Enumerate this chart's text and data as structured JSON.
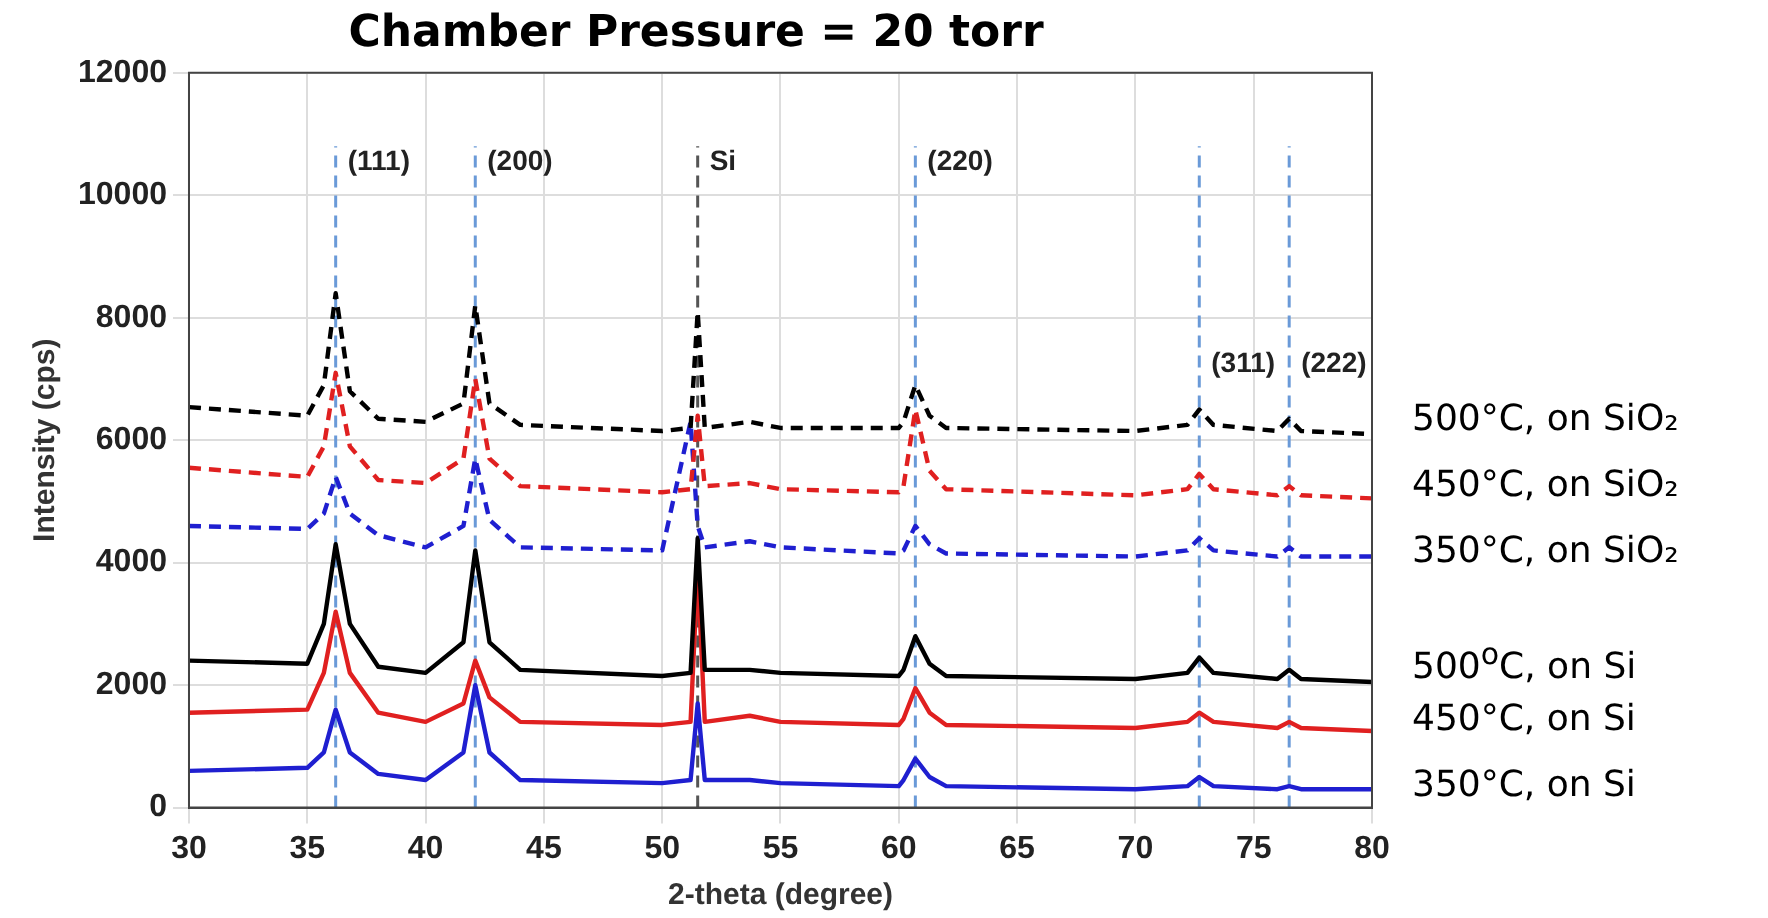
{
  "chart_data": {
    "type": "line",
    "title": "Chamber Pressure = 20 torr",
    "xlabel": "2-theta (degree)",
    "ylabel": "Intensity (cps)",
    "xlim": [
      30,
      80
    ],
    "xticks": [
      30,
      35,
      40,
      45,
      50,
      55,
      60,
      65,
      70,
      75,
      80
    ],
    "ylim": [
      0,
      12000
    ],
    "yticks": [
      0,
      2000,
      4000,
      6000,
      8000,
      10000,
      12000
    ],
    "grid": true,
    "legend": false,
    "marker": "none",
    "x": [
      30,
      35,
      35.7,
      36.2,
      36.8,
      38,
      40,
      41.6,
      42.1,
      42.7,
      44,
      50,
      51.2,
      51.5,
      51.8,
      53.7,
      55,
      60,
      60.2,
      60.7,
      61.3,
      62,
      70,
      72.2,
      72.7,
      73.3,
      76,
      76.5,
      77,
      80
    ],
    "series": [
      {
        "name": "500°C, on SiO₂",
        "color": "#000000",
        "line_style": "dashed",
        "values": [
          6540,
          6400,
          6900,
          8400,
          6800,
          6350,
          6300,
          6600,
          8200,
          6600,
          6250,
          6150,
          6200,
          8100,
          6200,
          6300,
          6200,
          6200,
          6300,
          6900,
          6400,
          6200,
          6150,
          6250,
          6500,
          6250,
          6150,
          6350,
          6150,
          6100
        ]
      },
      {
        "name": "450°C, on SiO₂",
        "color": "#e02020",
        "line_style": "dashed",
        "values": [
          5550,
          5400,
          5900,
          7100,
          5900,
          5350,
          5300,
          5700,
          7000,
          5700,
          5250,
          5150,
          5200,
          6400,
          5250,
          5300,
          5200,
          5150,
          5250,
          6500,
          5500,
          5200,
          5100,
          5200,
          5450,
          5200,
          5100,
          5250,
          5100,
          5050
        ]
      },
      {
        "name": "350°C, on SiO₂",
        "color": "#1f1fd0",
        "line_style": "dashed",
        "values": [
          4600,
          4550,
          4800,
          5400,
          4800,
          4450,
          4250,
          4600,
          5700,
          4700,
          4250,
          4200,
          6300,
          4600,
          4250,
          4350,
          4250,
          4150,
          4200,
          4600,
          4300,
          4150,
          4100,
          4200,
          4400,
          4200,
          4100,
          4250,
          4100,
          4100
        ]
      },
      {
        "name": "500$^{o}$C, on Si",
        "color": "#000000",
        "line_style": "solid",
        "values": [
          2400,
          2350,
          3000,
          4300,
          3000,
          2300,
          2200,
          2700,
          4200,
          2700,
          2250,
          2150,
          2200,
          4400,
          2250,
          2250,
          2200,
          2150,
          2250,
          2800,
          2350,
          2150,
          2100,
          2200,
          2450,
          2200,
          2100,
          2250,
          2100,
          2050
        ]
      },
      {
        "name": "450°C, on Si",
        "color": "#e02020",
        "line_style": "solid",
        "values": [
          1550,
          1600,
          2200,
          3200,
          2200,
          1550,
          1400,
          1700,
          2400,
          1800,
          1400,
          1350,
          1400,
          3900,
          1400,
          1500,
          1400,
          1350,
          1450,
          1950,
          1550,
          1350,
          1300,
          1400,
          1550,
          1400,
          1300,
          1400,
          1300,
          1250
        ]
      },
      {
        "name": "350°C, on Si",
        "color": "#1f1fd0",
        "line_style": "solid",
        "values": [
          600,
          650,
          900,
          1600,
          900,
          550,
          450,
          900,
          2000,
          900,
          450,
          400,
          450,
          1700,
          450,
          450,
          400,
          350,
          450,
          800,
          500,
          350,
          300,
          350,
          500,
          350,
          300,
          350,
          300,
          300
        ]
      }
    ],
    "ref_lines": [
      {
        "axis": "x",
        "value": 36.2,
        "color": "#6a9ad8",
        "line_style": "dashed"
      },
      {
        "axis": "x",
        "value": 42.1,
        "color": "#6a9ad8",
        "line_style": "dashed"
      },
      {
        "axis": "x",
        "value": 51.5,
        "color": "#555555",
        "line_style": "dashed"
      },
      {
        "axis": "x",
        "value": 60.7,
        "color": "#6a9ad8",
        "line_style": "dashed"
      },
      {
        "axis": "x",
        "value": 72.7,
        "color": "#6a9ad8",
        "line_style": "dashed"
      },
      {
        "axis": "x",
        "value": 76.5,
        "color": "#6a9ad8",
        "line_style": "dashed"
      }
    ],
    "annotations": [
      {
        "text": "(111)",
        "x": 36.2,
        "y": 10800
      },
      {
        "text": "(200)",
        "x": 42.1,
        "y": 10800
      },
      {
        "text": "Si",
        "x": 51.5,
        "y": 10800
      },
      {
        "text": "(220)",
        "x": 60.7,
        "y": 10800
      },
      {
        "text": "(311)",
        "x": 72.7,
        "y": 7500
      },
      {
        "text": "(222)",
        "x": 76.5,
        "y": 7500
      }
    ]
  }
}
